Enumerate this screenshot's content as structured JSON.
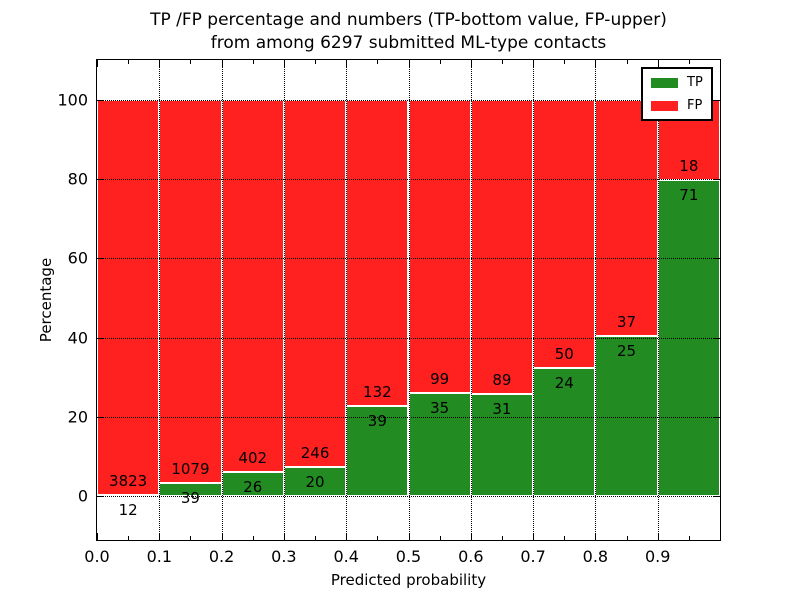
{
  "chart_data": {
    "type": "bar",
    "subtype": "stacked-percentage",
    "title": "TP /FP percentage and numbers (TP-bottom value, FP-upper)\nfrom among 6297 submitted ML-type contacts",
    "xlabel": "Predicted probability",
    "ylabel": "Percentage",
    "total_contacts": 6297,
    "bin_width": 0.1,
    "bin_starts": [
      0.0,
      0.1,
      0.2,
      0.3,
      0.4,
      0.5,
      0.6,
      0.7,
      0.8,
      0.9
    ],
    "series": [
      {
        "name": "TP",
        "color": "#228b22",
        "counts": [
          12,
          39,
          26,
          20,
          39,
          35,
          31,
          24,
          25,
          71
        ]
      },
      {
        "name": "FP",
        "color": "#ff2020",
        "counts": [
          3823,
          1079,
          402,
          246,
          132,
          99,
          89,
          50,
          37,
          18
        ]
      }
    ],
    "legend": [
      {
        "label": "TP",
        "color": "#228b22"
      },
      {
        "label": "FP",
        "color": "#ff2020"
      }
    ],
    "legend_position": "upper right",
    "xticks": [
      0.0,
      0.1,
      0.2,
      0.3,
      0.4,
      0.5,
      0.6,
      0.7,
      0.8,
      0.9
    ],
    "xtick_labels": [
      "0.0",
      "0.1",
      "0.2",
      "0.3",
      "0.4",
      "0.5",
      "0.6",
      "0.7",
      "0.8",
      "0.9"
    ],
    "yticks": [
      0,
      20,
      40,
      60,
      80,
      100
    ],
    "ytick_labels": [
      "0",
      "20",
      "40",
      "60",
      "80",
      "100"
    ],
    "xlim": [
      0.0,
      1.0
    ],
    "ylim": [
      -11,
      110
    ],
    "grid": true,
    "grid_style": "dotted",
    "bar_edge_color": "#ffffff",
    "text_color": "#000000"
  }
}
